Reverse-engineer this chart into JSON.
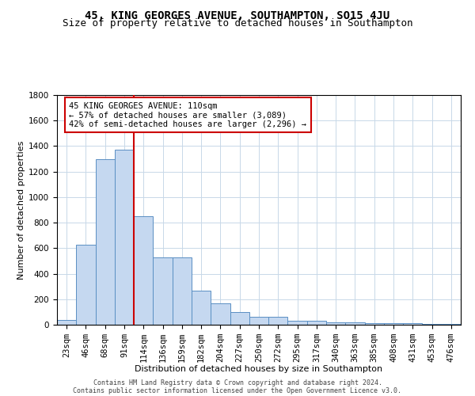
{
  "title": "45, KING GEORGES AVENUE, SOUTHAMPTON, SO15 4JU",
  "subtitle": "Size of property relative to detached houses in Southampton",
  "xlabel": "Distribution of detached houses by size in Southampton",
  "ylabel": "Number of detached properties",
  "footer_line1": "Contains HM Land Registry data © Crown copyright and database right 2024.",
  "footer_line2": "Contains public sector information licensed under the Open Government Licence v3.0.",
  "categories": [
    "23sqm",
    "46sqm",
    "68sqm",
    "91sqm",
    "114sqm",
    "136sqm",
    "159sqm",
    "182sqm",
    "204sqm",
    "227sqm",
    "250sqm",
    "272sqm",
    "295sqm",
    "317sqm",
    "340sqm",
    "363sqm",
    "385sqm",
    "408sqm",
    "431sqm",
    "453sqm",
    "476sqm"
  ],
  "values": [
    40,
    630,
    1300,
    1370,
    850,
    530,
    530,
    270,
    170,
    100,
    60,
    60,
    30,
    30,
    20,
    20,
    15,
    10,
    10,
    5,
    5
  ],
  "bar_color": "#c5d8f0",
  "bar_edge_color": "#5a8fc3",
  "vline_x_index": 3,
  "vline_color": "#cc0000",
  "ylim": [
    0,
    1800
  ],
  "yticks": [
    0,
    200,
    400,
    600,
    800,
    1000,
    1200,
    1400,
    1600,
    1800
  ],
  "annotation_text": "45 KING GEORGES AVENUE: 110sqm\n← 57% of detached houses are smaller (3,089)\n42% of semi-detached houses are larger (2,296) →",
  "bg_color": "#ffffff",
  "grid_color": "#c8d8e8",
  "title_fontsize": 10,
  "subtitle_fontsize": 9,
  "axis_label_fontsize": 8,
  "tick_fontsize": 7.5,
  "annotation_fontsize": 7.5,
  "footer_fontsize": 6.0
}
